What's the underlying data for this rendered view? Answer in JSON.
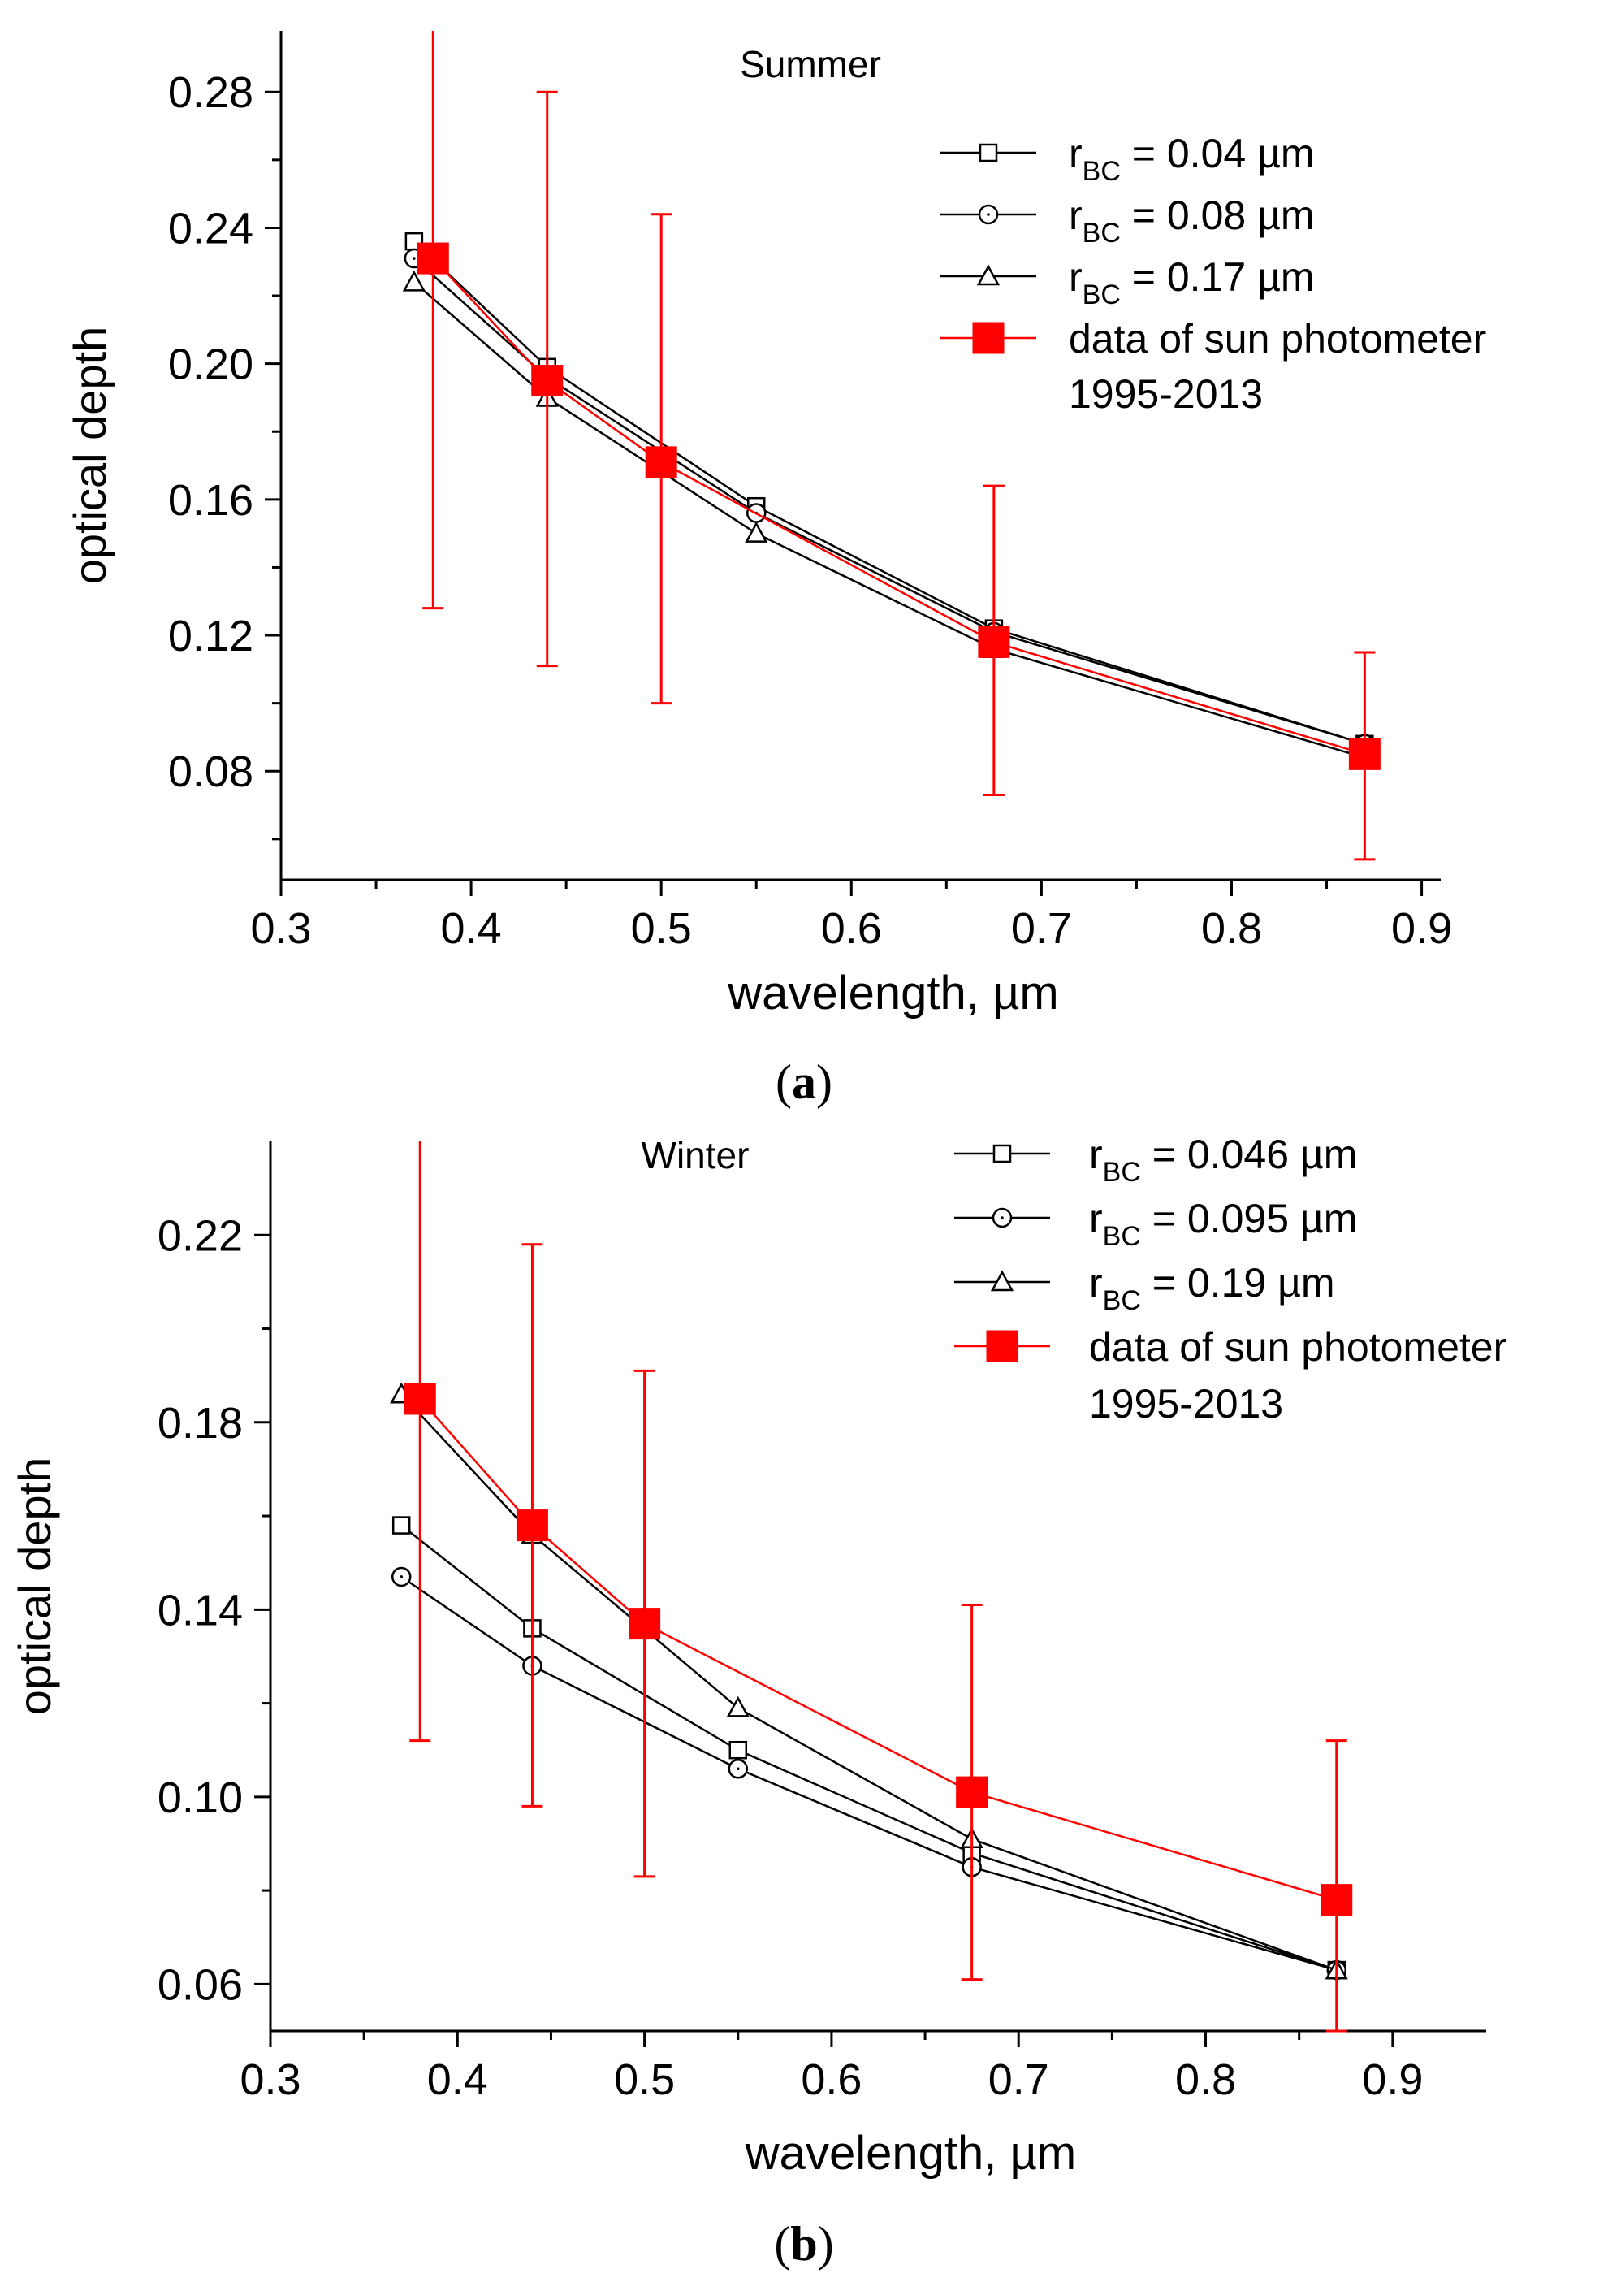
{
  "chart_data": [
    {
      "type": "line",
      "panel_label": "a",
      "title": "Summer",
      "xlabel": "wavelength, µm",
      "ylabel": "optical depth",
      "xlim": [
        0.3,
        0.91
      ],
      "ylim": [
        0.048,
        0.298
      ],
      "xticks": [
        0.3,
        0.4,
        0.5,
        0.6,
        0.7,
        0.8,
        0.9
      ],
      "xtick_labels": [
        "0.3",
        "0.4",
        "0.5",
        "0.6",
        "0.7",
        "0.8",
        "0.9"
      ],
      "yticks": [
        0.08,
        0.12,
        0.16,
        0.2,
        0.24,
        0.28
      ],
      "ytick_labels": [
        "0.08",
        "0.12",
        "0.16",
        "0.20",
        "0.24",
        "0.28"
      ],
      "series": [
        {
          "name": "r_BC = 0.04 µm",
          "label_main": "r",
          "label_sub": "BC",
          "label_rest": " = 0.04 µm",
          "marker": "square",
          "color": "#000000",
          "x": [
            0.37,
            0.44,
            0.55,
            0.675,
            0.87
          ],
          "y": [
            0.236,
            0.199,
            0.158,
            0.122,
            0.088
          ]
        },
        {
          "name": "r_BC = 0.08 µm",
          "label_main": "r",
          "label_sub": "BC",
          "label_rest": " = 0.08 µm",
          "marker": "circle",
          "color": "#000000",
          "x": [
            0.37,
            0.44,
            0.55,
            0.675,
            0.87
          ],
          "y": [
            0.231,
            0.196,
            0.156,
            0.121,
            0.088
          ]
        },
        {
          "name": "r_BC = 0.17 µm",
          "label_main": "r",
          "label_sub": "BC",
          "label_rest": " = 0.17 µm",
          "marker": "triangle",
          "color": "#000000",
          "x": [
            0.37,
            0.44,
            0.55,
            0.675,
            0.87
          ],
          "y": [
            0.224,
            0.19,
            0.15,
            0.116,
            0.084
          ]
        },
        {
          "name": "data of sun photometer 1995-2013",
          "label_main": "data of sun photometer",
          "label_line2": "1995-2013",
          "marker": "filled-square",
          "color": "#ff0000",
          "x": [
            0.38,
            0.44,
            0.5,
            0.675,
            0.87
          ],
          "y": [
            0.231,
            0.195,
            0.171,
            0.118,
            0.085
          ],
          "yerr_low": [
            0.128,
            0.111,
            0.1,
            0.073,
            0.054
          ],
          "yerr_high": [
            0.298,
            0.28,
            0.244,
            0.164,
            0.115
          ]
        }
      ]
    },
    {
      "type": "line",
      "panel_label": "b",
      "title": "Winter",
      "xlabel": "wavelength, µm",
      "ylabel": "optical depth",
      "xlim": [
        0.3,
        0.95
      ],
      "ylim": [
        0.05,
        0.24
      ],
      "xticks": [
        0.3,
        0.4,
        0.5,
        0.6,
        0.7,
        0.8,
        0.9
      ],
      "xtick_labels": [
        "0.3",
        "0.4",
        "0.5",
        "0.6",
        "0.7",
        "0.8",
        "0.9"
      ],
      "yticks": [
        0.06,
        0.1,
        0.14,
        0.18,
        0.22
      ],
      "ytick_labels": [
        "0.06",
        "0.10",
        "0.14",
        "0.18",
        "0.22"
      ],
      "series": [
        {
          "name": "r_BC = 0.046 µm",
          "label_main": "r",
          "label_sub": "BC",
          "label_rest": " = 0.046 µm",
          "marker": "square",
          "color": "#000000",
          "x": [
            0.37,
            0.44,
            0.55,
            0.675,
            0.87
          ],
          "y": [
            0.158,
            0.136,
            0.11,
            0.088,
            0.063
          ]
        },
        {
          "name": "r_BC = 0.095 µm",
          "label_main": "r",
          "label_sub": "BC",
          "label_rest": " = 0.095 µm",
          "marker": "circle",
          "color": "#000000",
          "x": [
            0.37,
            0.44,
            0.55,
            0.675,
            0.87
          ],
          "y": [
            0.147,
            0.128,
            0.106,
            0.085,
            0.063
          ]
        },
        {
          "name": "r_BC = 0.19 µm",
          "label_main": "r",
          "label_sub": "BC",
          "label_rest": " = 0.19 µm",
          "marker": "triangle",
          "color": "#000000",
          "x": [
            0.37,
            0.44,
            0.55,
            0.675,
            0.87
          ],
          "y": [
            0.186,
            0.156,
            0.119,
            0.091,
            0.063
          ]
        },
        {
          "name": "data of sun photometer 1995-2013",
          "label_main": "data of sun photometer",
          "label_line2": "1995-2013",
          "marker": "filled-square",
          "color": "#ff0000",
          "x": [
            0.38,
            0.44,
            0.5,
            0.675,
            0.87
          ],
          "y": [
            0.185,
            0.158,
            0.137,
            0.101,
            0.078
          ],
          "yerr_low": [
            0.112,
            0.098,
            0.083,
            0.061,
            0.05
          ],
          "yerr_high": [
            0.24,
            0.218,
            0.191,
            0.141,
            0.112
          ]
        }
      ]
    }
  ]
}
